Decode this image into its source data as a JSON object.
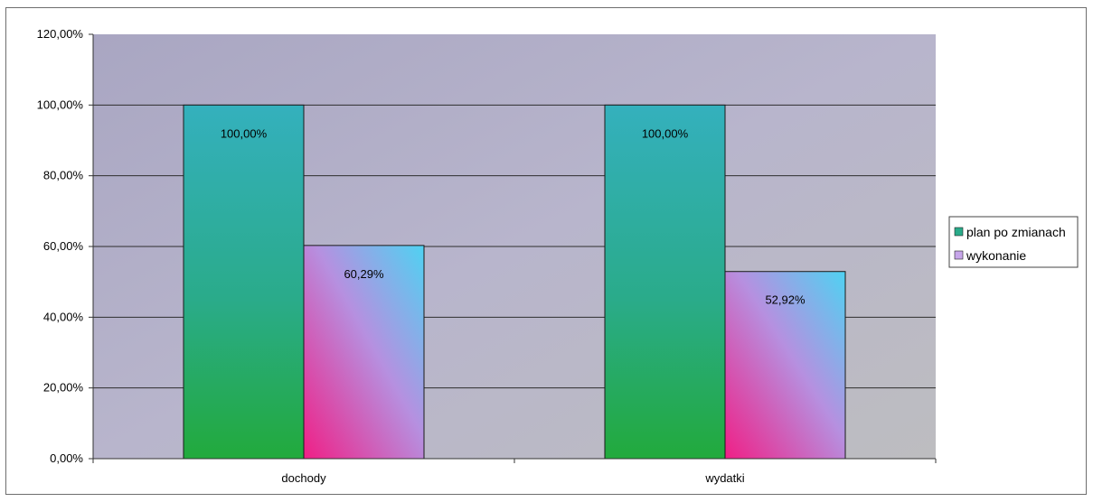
{
  "chart_data": {
    "type": "bar",
    "categories": [
      "dochody",
      "wydatki"
    ],
    "series": [
      {
        "name": "plan po zmianach",
        "values": [
          100.0,
          100.0
        ],
        "labels": [
          "100,00%",
          "100,00%"
        ]
      },
      {
        "name": "wykonanie",
        "values": [
          60.29,
          52.92
        ],
        "labels": [
          "60,29%",
          "52,92%"
        ]
      }
    ],
    "ylim": [
      0,
      120
    ],
    "y_ticks": [
      "0,00%",
      "20,00%",
      "40,00%",
      "60,00%",
      "80,00%",
      "100,00%",
      "120,00%"
    ],
    "grid": true,
    "legend_position": "right",
    "title": "",
    "xlabel": "",
    "ylabel": ""
  },
  "colors": {
    "plot_bg": "#b3b0c8",
    "series1_top": "#33b3b8",
    "series1_bottom": "#22a84a",
    "series2_top": "#55ccee",
    "series2_mid": "#aa88dd",
    "series2_bottom": "#ee2288",
    "gridline": "#333333"
  }
}
